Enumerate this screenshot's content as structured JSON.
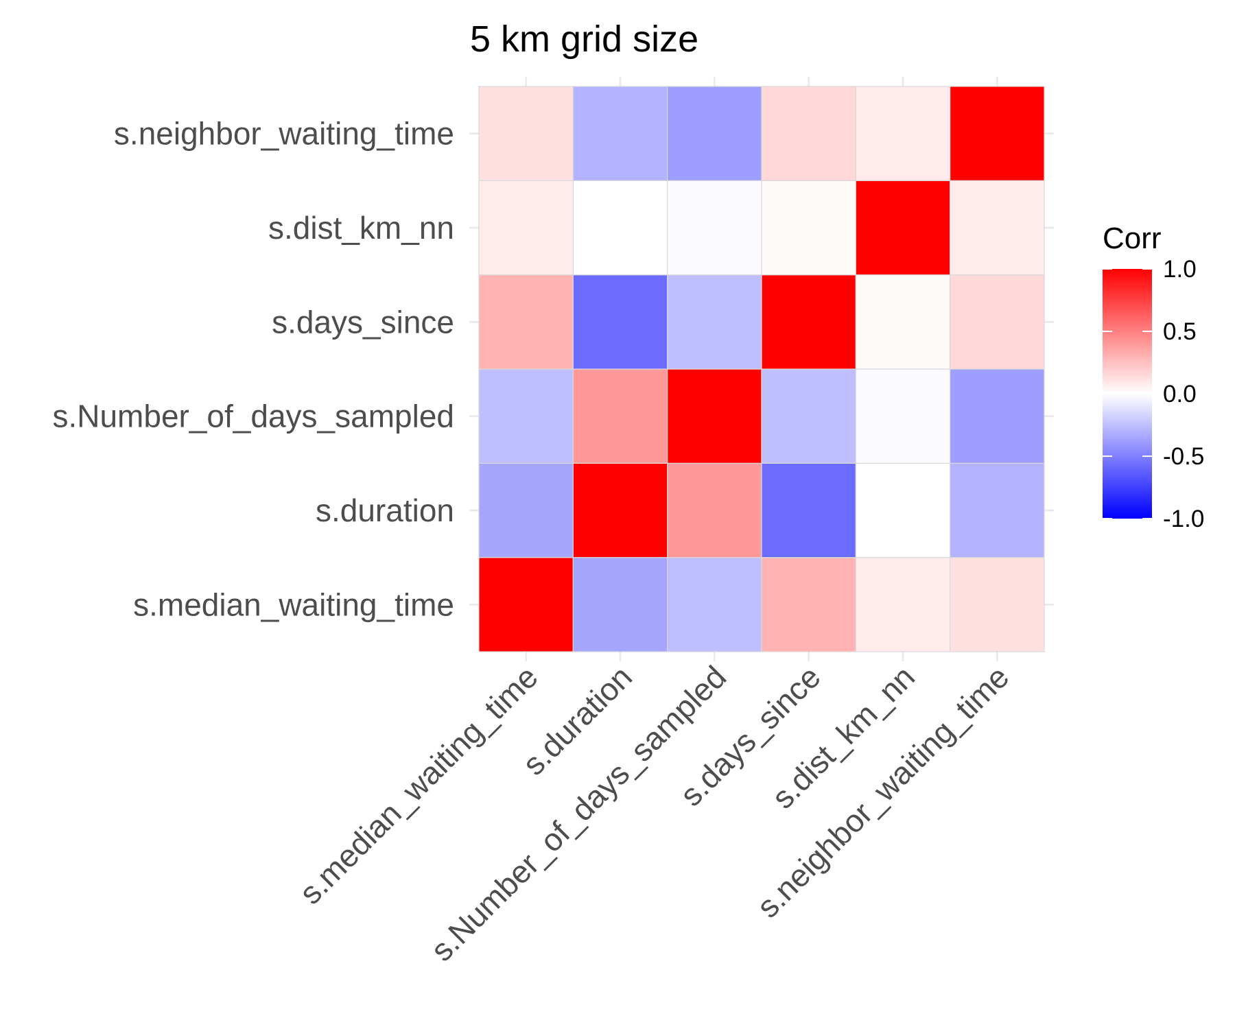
{
  "chart_data": {
    "type": "heatmap",
    "title": "5 km grid size",
    "x_labels": [
      "s.median_waiting_time",
      "s.duration",
      "s.Number_of_days_sampled",
      "s.days_since",
      "s.dist_km_nn",
      "s.neighbor_waiting_time"
    ],
    "y_labels": [
      "s.median_waiting_time",
      "s.duration",
      "s.Number_of_days_sampled",
      "s.days_since",
      "s.dist_km_nn",
      "s.neighbor_waiting_time"
    ],
    "values": [
      [
        1.0,
        -0.35,
        -0.25,
        0.3,
        0.08,
        0.12
      ],
      [
        -0.35,
        1.0,
        0.4,
        -0.58,
        0.0,
        -0.3
      ],
      [
        -0.25,
        0.4,
        1.0,
        -0.25,
        -0.02,
        -0.38
      ],
      [
        0.3,
        -0.58,
        -0.25,
        1.0,
        0.02,
        0.15
      ],
      [
        0.08,
        0.0,
        -0.02,
        0.02,
        1.0,
        0.08
      ],
      [
        0.12,
        -0.3,
        -0.38,
        0.15,
        0.08,
        1.0
      ]
    ],
    "legend": {
      "title": "Corr",
      "ticks": [
        "1.0",
        "0.5",
        "0.0",
        "-0.5",
        "-1.0"
      ],
      "tick_values": [
        1.0,
        0.5,
        0.0,
        -0.5,
        -1.0
      ],
      "range": [
        -1,
        1
      ],
      "low_color": "#0000ff",
      "mid_color": "#ffffff",
      "high_color": "#ff0000"
    },
    "grid": true,
    "legend_position": "right"
  }
}
